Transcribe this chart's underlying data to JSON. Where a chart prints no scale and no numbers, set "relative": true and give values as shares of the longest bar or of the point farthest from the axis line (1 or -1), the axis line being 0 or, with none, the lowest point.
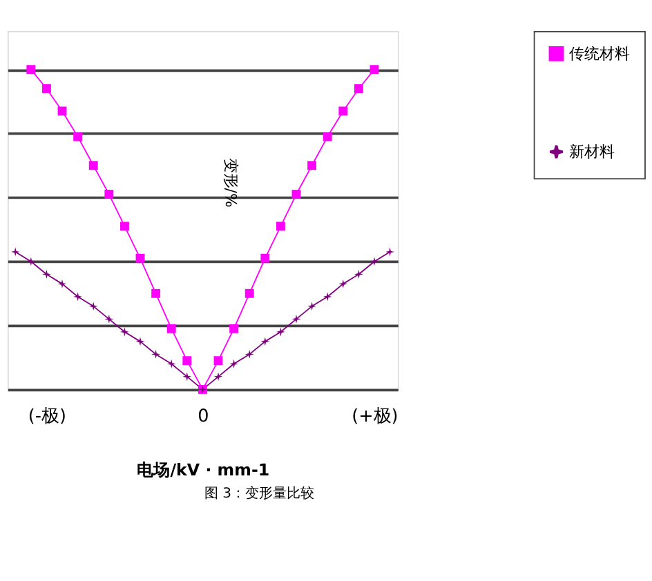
{
  "chart_data": {
    "type": "line",
    "relative": true,
    "xlabel": "电场/kV · mm-1",
    "ylabel": "变形/%",
    "annotations": [
      "图 3：变形量比较"
    ],
    "categories": [
      null,
      null,
      "(-极)",
      null,
      null,
      null,
      null,
      null,
      null,
      null,
      null,
      null,
      "0",
      null,
      null,
      null,
      null,
      null,
      null,
      null,
      null,
      null,
      null,
      "(+极)",
      null
    ],
    "series": [
      {
        "name": "传统材料",
        "color": "#ff00ff",
        "marker": "square",
        "values": [
          null,
          1.0,
          0.94,
          0.87,
          0.79,
          0.7,
          0.61,
          0.51,
          0.41,
          0.3,
          0.19,
          0.09,
          0.0,
          0.09,
          0.19,
          0.3,
          0.41,
          0.51,
          0.61,
          0.7,
          0.79,
          0.87,
          0.94,
          1.0,
          null
        ]
      },
      {
        "name": "新材料",
        "color": "#800080",
        "marker": "star",
        "values": [
          0.43,
          0.4,
          0.36,
          0.33,
          0.29,
          0.26,
          0.22,
          0.18,
          0.15,
          0.11,
          0.08,
          0.04,
          0.0,
          0.04,
          0.08,
          0.11,
          0.15,
          0.18,
          0.22,
          0.26,
          0.29,
          0.33,
          0.36,
          0.4,
          0.43
        ]
      }
    ],
    "grid": true,
    "legend": "right",
    "line_style": "solid"
  }
}
